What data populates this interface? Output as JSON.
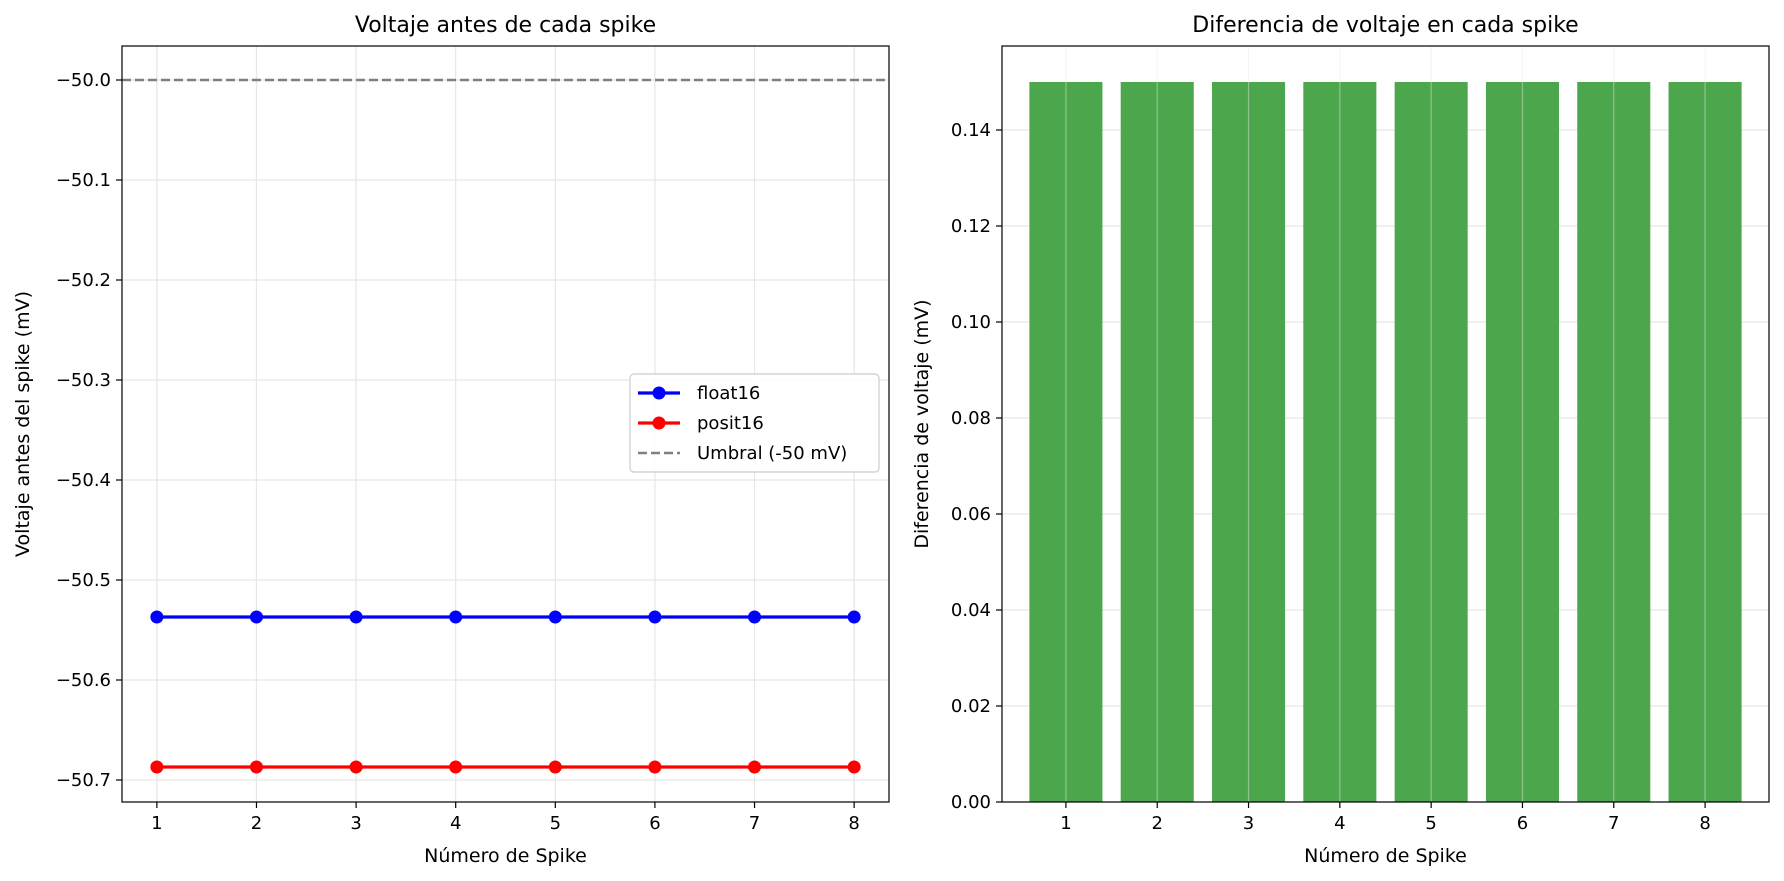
{
  "chart_data": [
    {
      "type": "line",
      "title": "Voltaje antes de cada spike",
      "xlabel": "Número de Spike",
      "ylabel": "Voltaje antes del spike (mV)",
      "x": [
        1,
        2,
        3,
        4,
        5,
        6,
        7,
        8
      ],
      "xticks": [
        "1",
        "2",
        "3",
        "4",
        "5",
        "6",
        "7",
        "8"
      ],
      "yticks": [
        "−50.0",
        "−50.1",
        "−50.2",
        "−50.3",
        "−50.4",
        "−50.5",
        "−50.6",
        "−50.7"
      ],
      "xlim": [
        0.65,
        8.35
      ],
      "ylim": [
        -50.722,
        -49.966
      ],
      "grid": true,
      "legend_position": "center-right",
      "series": [
        {
          "name": "float16",
          "color": "#0000ff",
          "marker": "circle",
          "values": [
            -50.537,
            -50.537,
            -50.537,
            -50.537,
            -50.537,
            -50.537,
            -50.537,
            -50.537
          ]
        },
        {
          "name": "posit16",
          "color": "#ff0000",
          "marker": "circle",
          "values": [
            -50.687,
            -50.687,
            -50.687,
            -50.687,
            -50.687,
            -50.687,
            -50.687,
            -50.687
          ]
        }
      ],
      "reference_line": {
        "name": "Umbral (-50 mV)",
        "y": -50.0,
        "color": "#808080",
        "style": "dashed"
      }
    },
    {
      "type": "bar",
      "title": "Diferencia de voltaje en cada spike",
      "xlabel": "Número de Spike",
      "ylabel": "Diferencia de voltaje (mV)",
      "categories": [
        "1",
        "2",
        "3",
        "4",
        "5",
        "6",
        "7",
        "8"
      ],
      "values": [
        0.15,
        0.15,
        0.15,
        0.15,
        0.15,
        0.15,
        0.15,
        0.15
      ],
      "yticks": [
        "0.00",
        "0.02",
        "0.04",
        "0.06",
        "0.08",
        "0.10",
        "0.12",
        "0.14"
      ],
      "ylim": [
        0,
        0.1575
      ],
      "color": "#4ca64c",
      "grid": true
    }
  ]
}
